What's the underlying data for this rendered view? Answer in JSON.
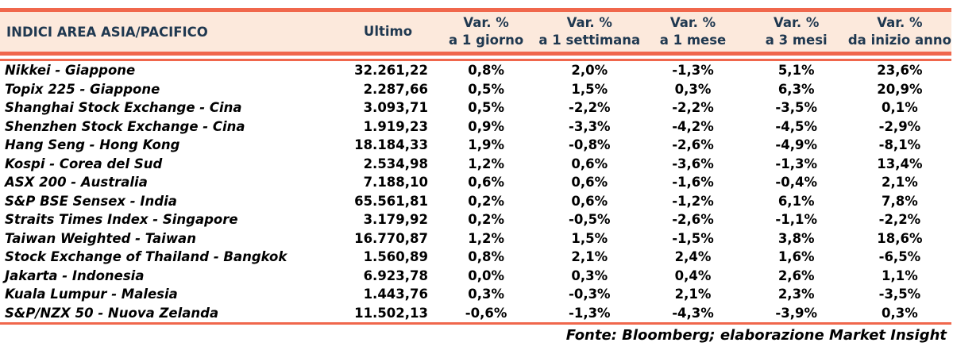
{
  "colors": {
    "accent": "#F0674C",
    "header_bg": "#FCE9DC",
    "header_text": "#1F3850",
    "body_text": "#000000"
  },
  "table": {
    "header": {
      "col_index": "INDICI AREA ASIA/PACIFICO",
      "col_ultimo": "Ultimo",
      "var_cols": [
        {
          "line1": "Var. %",
          "line2": "a 1 giorno"
        },
        {
          "line1": "Var. %",
          "line2": "a 1 settimana"
        },
        {
          "line1": "Var. %",
          "line2": "a 1 mese"
        },
        {
          "line1": "Var. %",
          "line2": "a 3 mesi"
        },
        {
          "line1": "Var. %",
          "line2": "da inizio anno"
        }
      ]
    },
    "rows": [
      {
        "name": "Nikkei - Giappone",
        "ultimo": "32.261,22",
        "vars": [
          "0,8%",
          "2,0%",
          "-1,3%",
          "5,1%",
          "23,6%"
        ]
      },
      {
        "name": "Topix 225 - Giappone",
        "ultimo": "2.287,66",
        "vars": [
          "0,5%",
          "1,5%",
          "0,3%",
          "6,3%",
          "20,9%"
        ]
      },
      {
        "name": "Shanghai Stock Exchange - Cina",
        "ultimo": "3.093,71",
        "vars": [
          "0,5%",
          "-2,2%",
          "-2,2%",
          "-3,5%",
          "0,1%"
        ]
      },
      {
        "name": "Shenzhen Stock Exchange - Cina",
        "ultimo": "1.919,23",
        "vars": [
          "0,9%",
          "-3,3%",
          "-4,2%",
          "-4,5%",
          "-2,9%"
        ]
      },
      {
        "name": "Hang Seng - Hong Kong",
        "ultimo": "18.184,33",
        "vars": [
          "1,9%",
          "-0,8%",
          "-2,6%",
          "-4,9%",
          "-8,1%"
        ]
      },
      {
        "name": "Kospi - Corea del Sud",
        "ultimo": "2.534,98",
        "vars": [
          "1,2%",
          "0,6%",
          "-3,6%",
          "-1,3%",
          "13,4%"
        ]
      },
      {
        "name": "ASX 200 - Australia",
        "ultimo": "7.188,10",
        "vars": [
          "0,6%",
          "0,6%",
          "-1,6%",
          "-0,4%",
          "2,1%"
        ]
      },
      {
        "name": "S&P BSE Sensex - India",
        "ultimo": "65.561,81",
        "vars": [
          "0,2%",
          "0,6%",
          "-1,2%",
          "6,1%",
          "7,8%"
        ]
      },
      {
        "name": "Straits Times Index - Singapore",
        "ultimo": "3.179,92",
        "vars": [
          "0,2%",
          "-0,5%",
          "-2,6%",
          "-1,1%",
          "-2,2%"
        ]
      },
      {
        "name": "Taiwan Weighted - Taiwan",
        "ultimo": "16.770,87",
        "vars": [
          "1,2%",
          "1,5%",
          "-1,5%",
          "3,8%",
          "18,6%"
        ]
      },
      {
        "name": "Stock Exchange of Thailand - Bangkok",
        "ultimo": "1.560,89",
        "vars": [
          "0,8%",
          "2,1%",
          "2,4%",
          "1,6%",
          "-6,5%"
        ]
      },
      {
        "name": "Jakarta - Indonesia",
        "ultimo": "6.923,78",
        "vars": [
          "0,0%",
          "0,3%",
          "0,4%",
          "2,6%",
          "1,1%"
        ]
      },
      {
        "name": "Kuala Lumpur - Malesia",
        "ultimo": "1.443,76",
        "vars": [
          "0,3%",
          "-0,3%",
          "2,1%",
          "2,3%",
          "-3,5%"
        ]
      },
      {
        "name": "S&P/NZX 50 - Nuova Zelanda",
        "ultimo": "11.502,13",
        "vars": [
          "-0,6%",
          "-1,3%",
          "-4,3%",
          "-3,9%",
          "0,3%"
        ]
      }
    ]
  },
  "footer": {
    "source": "Fonte: Bloomberg; elaborazione Market Insight"
  }
}
